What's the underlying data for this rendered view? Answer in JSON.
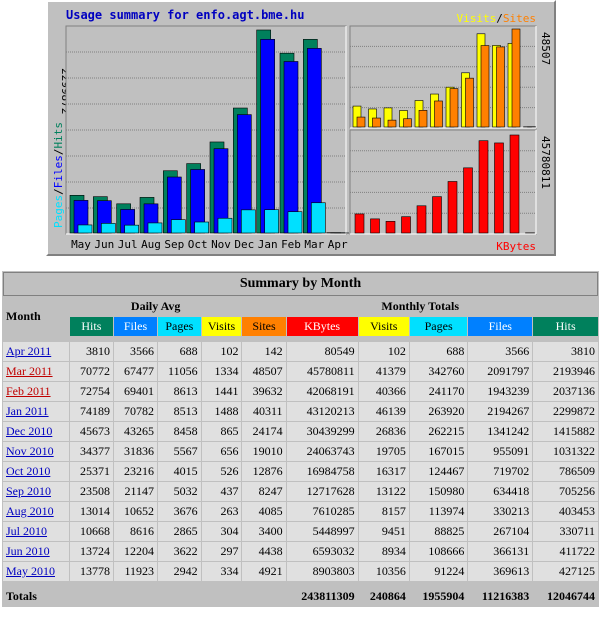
{
  "graph": {
    "title": "Usage summary for enfo.agt.bme.hu",
    "legend_left": [
      "Pages",
      "/",
      "Files",
      "/",
      "Hits"
    ],
    "legend_visits": "Visits",
    "legend_slash": "/",
    "legend_sites": "Sites",
    "legend_kbytes": "KBytes",
    "max_hits_label": "2299872",
    "max_visits_label": "48507",
    "max_kbytes_label": "45780811",
    "colors": {
      "hits": "#00805c",
      "files": "#0000ff",
      "pages": "#00e0ff",
      "visits": "#ffff00",
      "sites": "#ff8000",
      "kbytes": "#ff0000"
    }
  },
  "chart_data": {
    "type": "bar",
    "categories": [
      "May",
      "Jun",
      "Jul",
      "Aug",
      "Sep",
      "Oct",
      "Nov",
      "Dec",
      "Jan",
      "Feb",
      "Mar",
      "Apr"
    ],
    "series": [
      {
        "name": "Hits",
        "values": [
          427125,
          411722,
          330711,
          403453,
          705256,
          786509,
          1031322,
          1415882,
          2299872,
          2037136,
          2193946,
          3810
        ]
      },
      {
        "name": "Files",
        "values": [
          369613,
          366131,
          267104,
          330213,
          634418,
          719702,
          955091,
          1341242,
          2194267,
          1943239,
          2091797,
          3566
        ]
      },
      {
        "name": "Pages",
        "values": [
          91224,
          108666,
          88825,
          113974,
          150980,
          124467,
          167015,
          262215,
          263920,
          241170,
          342760,
          688
        ]
      },
      {
        "name": "Visits",
        "values": [
          10356,
          8934,
          9451,
          8157,
          13122,
          16317,
          19705,
          26836,
          46139,
          40366,
          41379,
          102
        ]
      },
      {
        "name": "Sites",
        "values": [
          4921,
          4438,
          3400,
          4085,
          8247,
          12876,
          19010,
          24174,
          40311,
          39632,
          48507,
          142
        ]
      },
      {
        "name": "KBytes",
        "values": [
          8903803,
          6593032,
          5448997,
          7610285,
          12717628,
          16984758,
          24063743,
          30439299,
          43120213,
          42068191,
          45780811,
          80549
        ]
      }
    ]
  },
  "table": {
    "caption": "Summary by Month",
    "col_month": "Month",
    "group_daily": "Daily Avg",
    "group_monthly": "Monthly Totals",
    "daily_headers": [
      {
        "label": "Hits",
        "bg": "#00805c",
        "fg": "#ffffff"
      },
      {
        "label": "Files",
        "bg": "#0080ff",
        "fg": "#ffffff"
      },
      {
        "label": "Pages",
        "bg": "#00e0ff",
        "fg": "#000000"
      },
      {
        "label": "Visits",
        "bg": "#ffff00",
        "fg": "#000000"
      }
    ],
    "monthly_headers": [
      {
        "label": "Sites",
        "bg": "#ff8000",
        "fg": "#000000"
      },
      {
        "label": "KBytes",
        "bg": "#ff0000",
        "fg": "#ffffff"
      },
      {
        "label": "Visits",
        "bg": "#ffff00",
        "fg": "#000000"
      },
      {
        "label": "Pages",
        "bg": "#00e0ff",
        "fg": "#000000"
      },
      {
        "label": "Files",
        "bg": "#0080ff",
        "fg": "#ffffff"
      },
      {
        "label": "Hits",
        "bg": "#00805c",
        "fg": "#ffffff"
      }
    ],
    "rows": [
      {
        "month": "Apr 2011",
        "red": false,
        "cells": [
          "3810",
          "3566",
          "688",
          "102",
          "142",
          "80549",
          "102",
          "688",
          "3566",
          "3810"
        ]
      },
      {
        "month": "Mar 2011",
        "red": true,
        "cells": [
          "70772",
          "67477",
          "11056",
          "1334",
          "48507",
          "45780811",
          "41379",
          "342760",
          "2091797",
          "2193946"
        ]
      },
      {
        "month": "Feb 2011",
        "red": true,
        "cells": [
          "72754",
          "69401",
          "8613",
          "1441",
          "39632",
          "42068191",
          "40366",
          "241170",
          "1943239",
          "2037136"
        ]
      },
      {
        "month": "Jan 2011",
        "red": false,
        "cells": [
          "74189",
          "70782",
          "8513",
          "1488",
          "40311",
          "43120213",
          "46139",
          "263920",
          "2194267",
          "2299872"
        ]
      },
      {
        "month": "Dec 2010",
        "red": false,
        "cells": [
          "45673",
          "43265",
          "8458",
          "865",
          "24174",
          "30439299",
          "26836",
          "262215",
          "1341242",
          "1415882"
        ]
      },
      {
        "month": "Nov 2010",
        "red": false,
        "cells": [
          "34377",
          "31836",
          "5567",
          "656",
          "19010",
          "24063743",
          "19705",
          "167015",
          "955091",
          "1031322"
        ]
      },
      {
        "month": "Oct 2010",
        "red": false,
        "cells": [
          "25371",
          "23216",
          "4015",
          "526",
          "12876",
          "16984758",
          "16317",
          "124467",
          "719702",
          "786509"
        ]
      },
      {
        "month": "Sep 2010",
        "red": false,
        "cells": [
          "23508",
          "21147",
          "5032",
          "437",
          "8247",
          "12717628",
          "13122",
          "150980",
          "634418",
          "705256"
        ]
      },
      {
        "month": "Aug 2010",
        "red": false,
        "cells": [
          "13014",
          "10652",
          "3676",
          "263",
          "4085",
          "7610285",
          "8157",
          "113974",
          "330213",
          "403453"
        ]
      },
      {
        "month": "Jul 2010",
        "red": false,
        "cells": [
          "10668",
          "8616",
          "2865",
          "304",
          "3400",
          "5448997",
          "9451",
          "88825",
          "267104",
          "330711"
        ]
      },
      {
        "month": "Jun 2010",
        "red": false,
        "cells": [
          "13724",
          "12204",
          "3622",
          "297",
          "4438",
          "6593032",
          "8934",
          "108666",
          "366131",
          "411722"
        ]
      },
      {
        "month": "May 2010",
        "red": false,
        "cells": [
          "13778",
          "11923",
          "2942",
          "334",
          "4921",
          "8903803",
          "10356",
          "91224",
          "369613",
          "427125"
        ]
      }
    ],
    "totals_label": "Totals",
    "totals": [
      "243811309",
      "240864",
      "1955904",
      "11216383",
      "12046744"
    ]
  }
}
